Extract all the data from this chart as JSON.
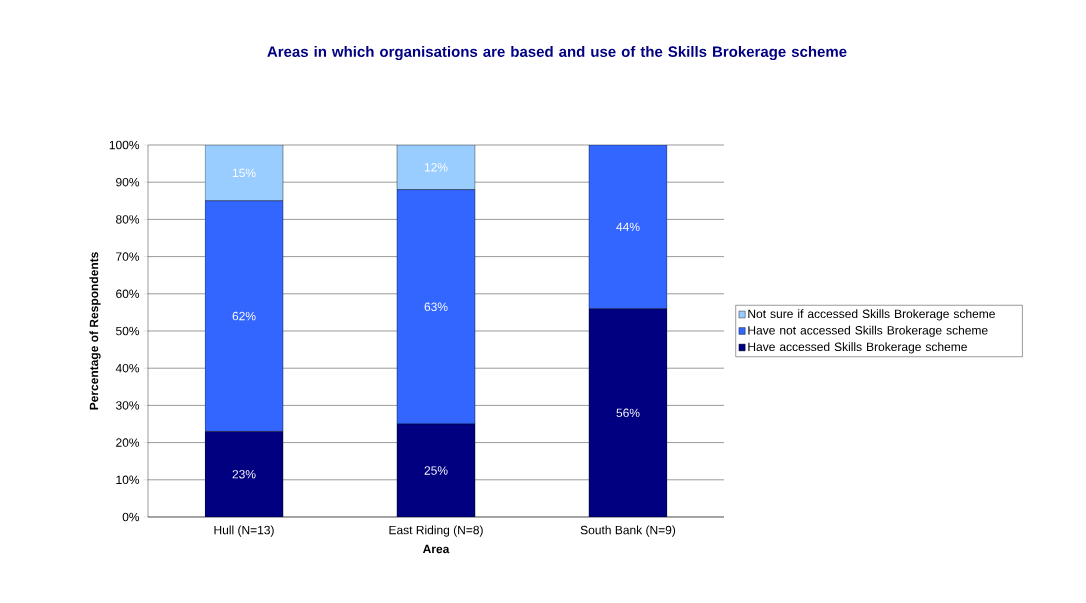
{
  "chart_data": {
    "type": "bar",
    "stacked": true,
    "title": "Areas in which organisations are based and use of the Skills Brokerage scheme",
    "xlabel": "Area",
    "ylabel": "Percentage of Respondents",
    "categories": [
      "Hull (N=13)",
      "East Riding (N=8)",
      "South Bank (N=9)"
    ],
    "series": [
      {
        "name": "Have accessed Skills Brokerage scheme",
        "color": "#000080",
        "values": [
          23,
          25,
          56
        ],
        "value_labels": [
          "23%",
          "25%",
          "56%"
        ]
      },
      {
        "name": "Have not accessed Skills Brokerage scheme",
        "color": "#3366ff",
        "values": [
          62,
          63,
          44
        ],
        "value_labels": [
          "62%",
          "63%",
          "44%"
        ]
      },
      {
        "name": "Not sure if accessed Skills Brokerage scheme",
        "color": "#99ccff",
        "values": [
          15,
          12,
          null
        ],
        "value_labels": [
          "15%",
          "12%",
          null
        ]
      }
    ],
    "ylim": [
      0,
      100
    ],
    "yticks": [
      {
        "value": 0,
        "label": "0%"
      },
      {
        "value": 10,
        "label": "10%"
      },
      {
        "value": 20,
        "label": "20%"
      },
      {
        "value": 30,
        "label": "30%"
      },
      {
        "value": 40,
        "label": "40%"
      },
      {
        "value": 50,
        "label": "50%"
      },
      {
        "value": 60,
        "label": "60%"
      },
      {
        "value": 70,
        "label": "70%"
      },
      {
        "value": 80,
        "label": "80%"
      },
      {
        "value": 90,
        "label": "90%"
      },
      {
        "value": 100,
        "label": "100%"
      }
    ],
    "grid": "y",
    "legend": "right"
  }
}
